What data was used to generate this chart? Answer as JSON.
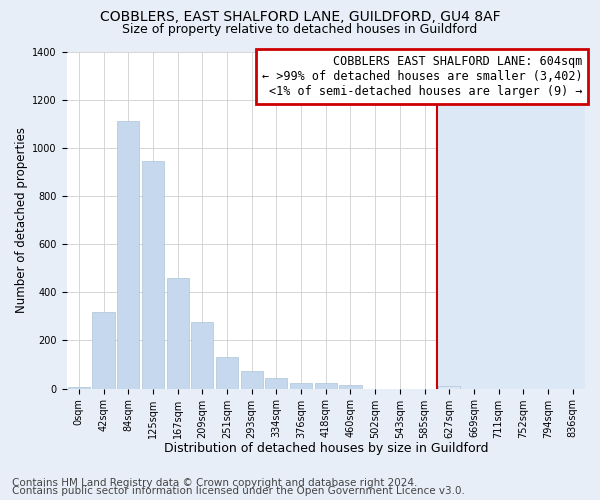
{
  "title": "COBBLERS, EAST SHALFORD LANE, GUILDFORD, GU4 8AF",
  "subtitle": "Size of property relative to detached houses in Guildford",
  "xlabel": "Distribution of detached houses by size in Guildford",
  "ylabel": "Number of detached properties",
  "footnote1": "Contains HM Land Registry data © Crown copyright and database right 2024.",
  "footnote2": "Contains public sector information licensed under the Open Government Licence v3.0.",
  "bar_labels": [
    "0sqm",
    "42sqm",
    "84sqm",
    "125sqm",
    "167sqm",
    "209sqm",
    "251sqm",
    "293sqm",
    "334sqm",
    "376sqm",
    "418sqm",
    "460sqm",
    "502sqm",
    "543sqm",
    "585sqm",
    "627sqm",
    "669sqm",
    "711sqm",
    "752sqm",
    "794sqm",
    "836sqm"
  ],
  "bar_values": [
    5,
    320,
    1110,
    945,
    460,
    275,
    130,
    75,
    45,
    25,
    25,
    15,
    0,
    0,
    0,
    10,
    0,
    0,
    0,
    0,
    0
  ],
  "highlight_bar_index": 15,
  "highlight_color": "#cc0000",
  "annotation_line1": "COBBLERS EAST SHALFORD LANE: 604sqm",
  "annotation_line2": "← >99% of detached houses are smaller (3,402)",
  "annotation_line3": "<1% of semi-detached houses are larger (9) →",
  "annotation_box_color": "#ffffff",
  "annotation_border_color": "#cc0000",
  "ylim": [
    0,
    1400
  ],
  "yticks": [
    0,
    200,
    400,
    600,
    800,
    1000,
    1200,
    1400
  ],
  "bar_color": "#c5d8ed",
  "bar_color_right": "#dce8f5",
  "grid_color": "#d0d0d0",
  "bg_color": "#e8eef8",
  "plot_bg_left": "#ffffff",
  "plot_bg_right": "#dce8f5",
  "title_fontsize": 10,
  "subtitle_fontsize": 9,
  "xlabel_fontsize": 9,
  "ylabel_fontsize": 8.5,
  "tick_fontsize": 7,
  "annotation_fontsize": 8.5,
  "footnote_fontsize": 7.5
}
